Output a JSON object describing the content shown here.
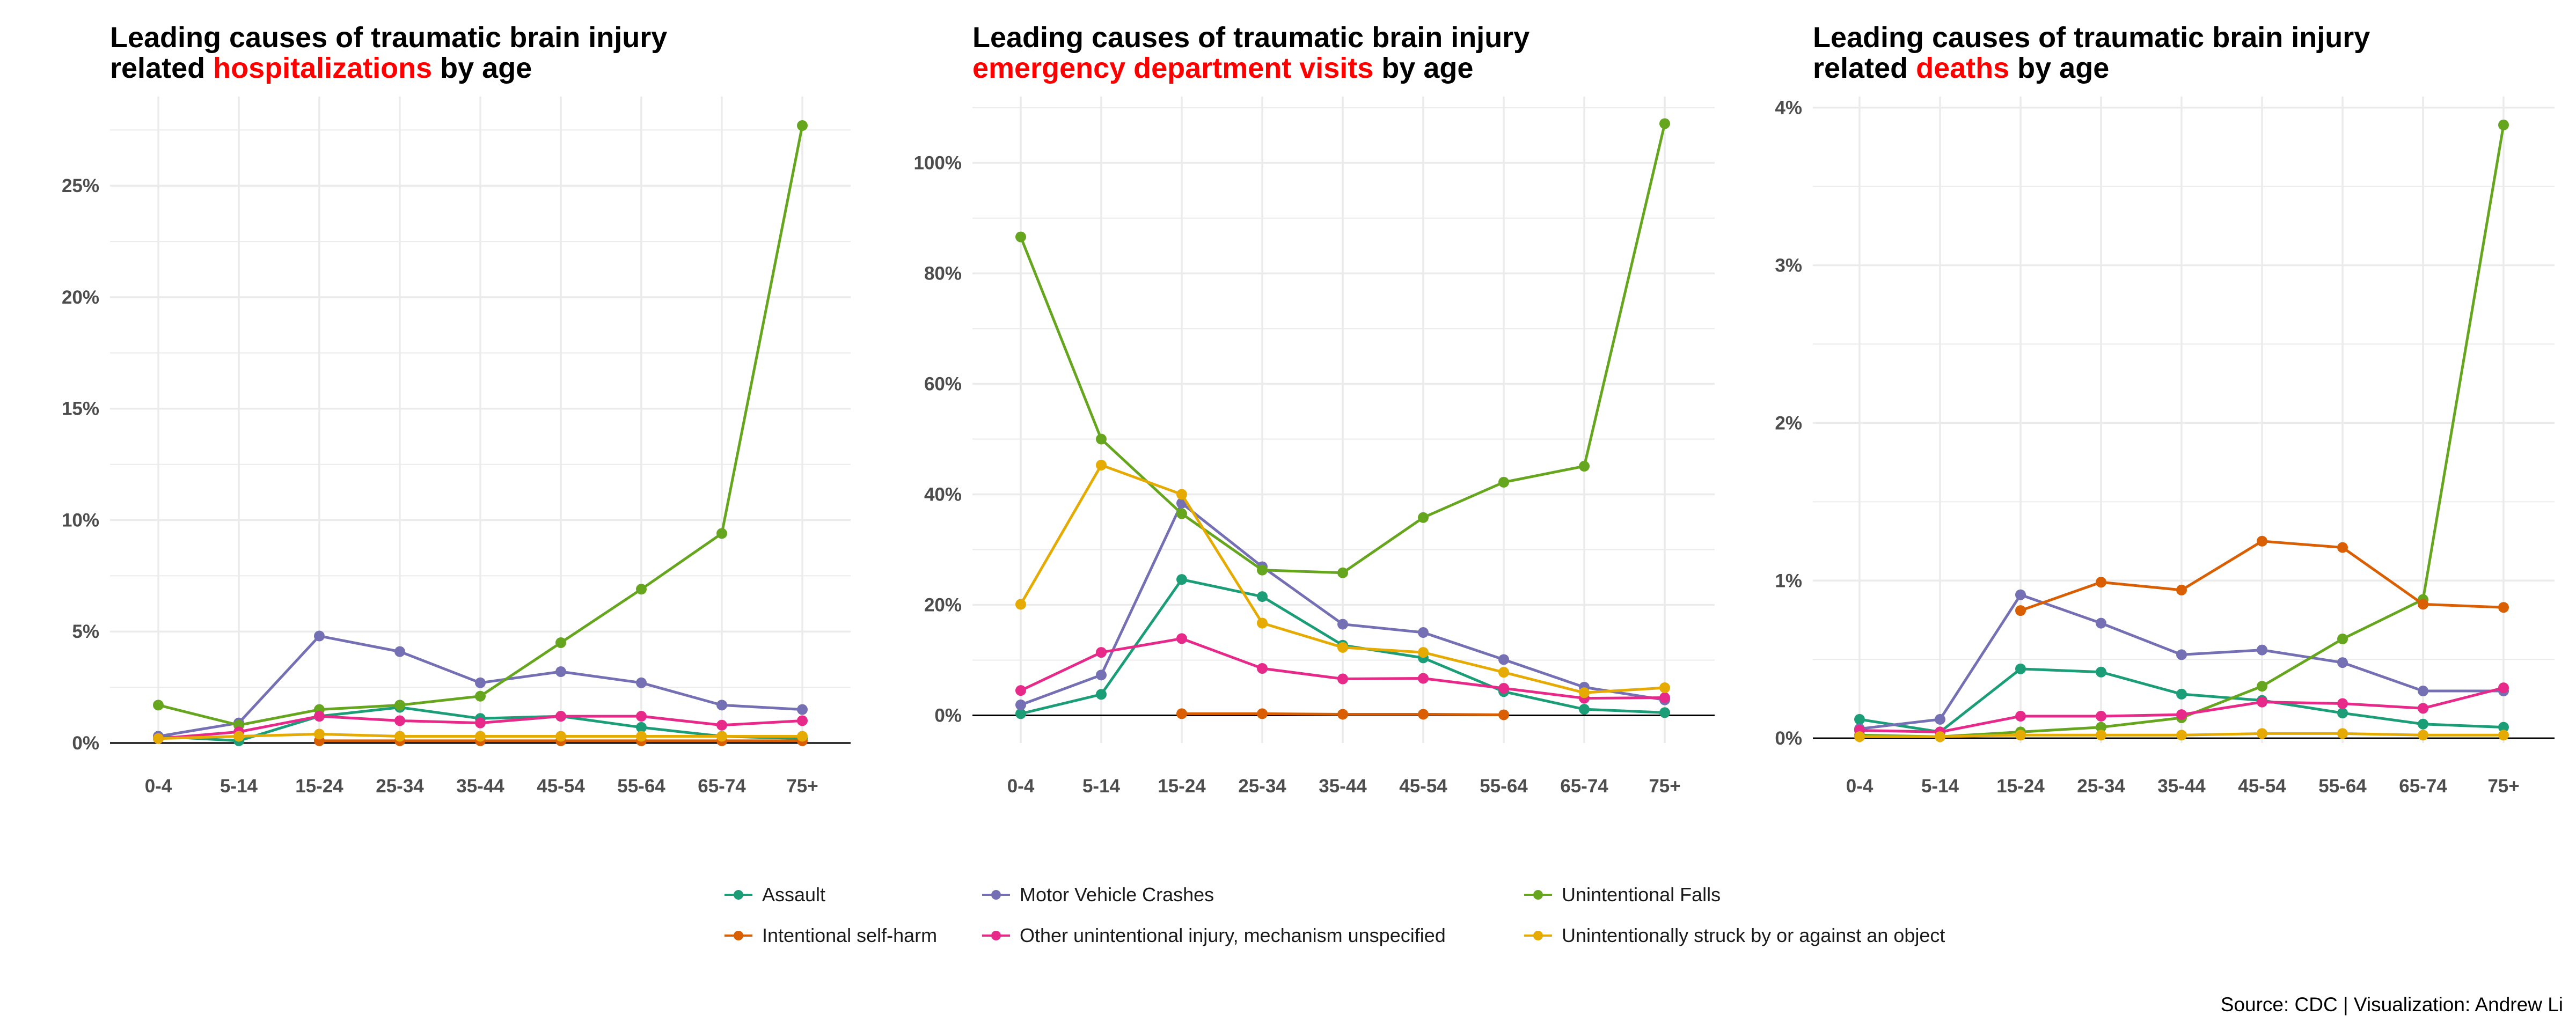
{
  "panels": [
    {
      "title_line1": "Leading causes of traumatic brain injury",
      "title_pre": "related ",
      "title_highlight": "hospitalizations",
      "title_post": " by age"
    },
    {
      "title_line1": "Leading causes of traumatic brain injury",
      "title_pre": "",
      "title_highlight": "emergency department visits",
      "title_post": " by age"
    },
    {
      "title_line1": "Leading causes of traumatic brain injury",
      "title_pre": "related ",
      "title_highlight": "deaths",
      "title_post": " by age"
    }
  ],
  "legend": [
    {
      "label": "Assault",
      "color": "#1b9e77"
    },
    {
      "label": "Motor Vehicle Crashes",
      "color": "#7570b3"
    },
    {
      "label": "Unintentional Falls",
      "color": "#66a61e"
    },
    {
      "label": "Intentional self-harm",
      "color": "#d95f02"
    },
    {
      "label": "Other unintentional injury, mechanism unspecified",
      "color": "#e7298a"
    },
    {
      "label": "Unintentionally struck by or against an object",
      "color": "#e6ab02"
    }
  ],
  "caption": "Source: CDC | Visualization: Andrew Li",
  "colors": {
    "highlight": "#ff0000",
    "grid": "#ebebeb",
    "axis_text": "#4d4d4d",
    "zero_line": "#000000"
  },
  "chart_data": [
    {
      "type": "line",
      "title": "Leading causes of traumatic brain injury related hospitalizations by age",
      "categories": [
        "0-4",
        "5-14",
        "15-24",
        "25-34",
        "35-44",
        "45-54",
        "55-64",
        "65-74",
        "75+"
      ],
      "ylim": [
        0,
        29
      ],
      "y_ticks": [
        0,
        5,
        10,
        15,
        20,
        25
      ],
      "y_tick_labels": [
        "0%",
        "5%",
        "10%",
        "15%",
        "20%",
        "25%"
      ],
      "grid": true,
      "legend_position": "bottom",
      "series": [
        {
          "name": "Assault",
          "values": [
            0.3,
            0.1,
            1.2,
            1.6,
            1.1,
            1.2,
            0.7,
            0.3,
            0.2
          ]
        },
        {
          "name": "Motor Vehicle Crashes",
          "values": [
            0.3,
            0.9,
            4.8,
            4.1,
            2.7,
            3.2,
            2.7,
            1.7,
            1.5
          ]
        },
        {
          "name": "Unintentional Falls",
          "values": [
            1.7,
            0.8,
            1.5,
            1.7,
            2.1,
            4.5,
            6.9,
            9.4,
            27.7
          ]
        },
        {
          "name": "Intentional self-harm",
          "values": [
            null,
            null,
            0.1,
            0.1,
            0.1,
            0.1,
            0.1,
            0.1,
            0.1
          ]
        },
        {
          "name": "Other unintentional injury, mechanism unspecified",
          "values": [
            0.2,
            0.5,
            1.2,
            1.0,
            0.9,
            1.2,
            1.2,
            0.8,
            1.0
          ]
        },
        {
          "name": "Unintentionally struck by or against an object",
          "values": [
            0.2,
            0.3,
            0.4,
            0.3,
            0.3,
            0.3,
            0.3,
            0.3,
            0.3
          ]
        }
      ]
    },
    {
      "type": "line",
      "title": "Leading causes of traumatic brain injury emergency department visits by age",
      "categories": [
        "0-4",
        "5-14",
        "15-24",
        "25-34",
        "35-44",
        "45-54",
        "55-64",
        "65-74",
        "75+"
      ],
      "ylim": [
        -5,
        112
      ],
      "y_ticks": [
        0,
        20,
        40,
        60,
        80,
        100
      ],
      "y_tick_labels": [
        "0%",
        "20%",
        "40%",
        "60%",
        "80%",
        "100%"
      ],
      "grid": true,
      "legend_position": "bottom",
      "series": [
        {
          "name": "Assault",
          "values": [
            0.3,
            3.8,
            24.6,
            21.5,
            12.7,
            10.4,
            4.3,
            1.1,
            0.5
          ]
        },
        {
          "name": "Motor Vehicle Crashes",
          "values": [
            1.9,
            7.3,
            38.4,
            26.9,
            16.5,
            15.0,
            10.1,
            5.1,
            2.8
          ]
        },
        {
          "name": "Unintentional Falls",
          "values": [
            86.6,
            50.0,
            36.5,
            26.3,
            25.8,
            35.8,
            42.2,
            45.1,
            107.1
          ]
        },
        {
          "name": "Intentional self-harm",
          "values": [
            null,
            null,
            0.3,
            0.3,
            0.2,
            0.2,
            0.1,
            null,
            null
          ]
        },
        {
          "name": "Other unintentional injury, mechanism unspecified",
          "values": [
            4.5,
            11.4,
            13.9,
            8.5,
            6.6,
            6.7,
            4.9,
            3.1,
            3.2
          ]
        },
        {
          "name": "Unintentionally struck by or against an object",
          "values": [
            20.1,
            45.3,
            40.0,
            16.7,
            12.3,
            11.4,
            7.8,
            4.1,
            5.0
          ]
        }
      ]
    },
    {
      "type": "line",
      "title": "Leading causes of traumatic brain injury related deaths by age",
      "categories": [
        "0-4",
        "5-14",
        "15-24",
        "25-34",
        "35-44",
        "45-54",
        "55-64",
        "65-74",
        "75+"
      ],
      "ylim": [
        -0.03,
        4.07
      ],
      "y_ticks": [
        0,
        1,
        2,
        3,
        4
      ],
      "y_tick_labels": [
        "0%",
        "1%",
        "2%",
        "3%",
        "4%"
      ],
      "grid": true,
      "legend_position": "bottom",
      "series": [
        {
          "name": "Assault",
          "values": [
            0.12,
            0.04,
            0.44,
            0.42,
            0.28,
            0.24,
            0.16,
            0.09,
            0.07
          ]
        },
        {
          "name": "Motor Vehicle Crashes",
          "values": [
            0.06,
            0.12,
            0.91,
            0.73,
            0.53,
            0.56,
            0.48,
            0.3,
            0.3
          ]
        },
        {
          "name": "Unintentional Falls",
          "values": [
            0.02,
            0.01,
            0.04,
            0.07,
            0.13,
            0.33,
            0.63,
            0.88,
            3.89
          ]
        },
        {
          "name": "Intentional self-harm",
          "values": [
            null,
            null,
            0.81,
            0.99,
            0.94,
            1.25,
            1.21,
            0.85,
            0.83
          ]
        },
        {
          "name": "Other unintentional injury, mechanism unspecified",
          "values": [
            0.05,
            0.04,
            0.14,
            0.14,
            0.15,
            0.23,
            0.22,
            0.19,
            0.32
          ]
        },
        {
          "name": "Unintentionally struck by or against an object",
          "values": [
            0.01,
            0.01,
            0.02,
            0.02,
            0.02,
            0.03,
            0.03,
            0.02,
            0.02
          ]
        }
      ]
    }
  ]
}
